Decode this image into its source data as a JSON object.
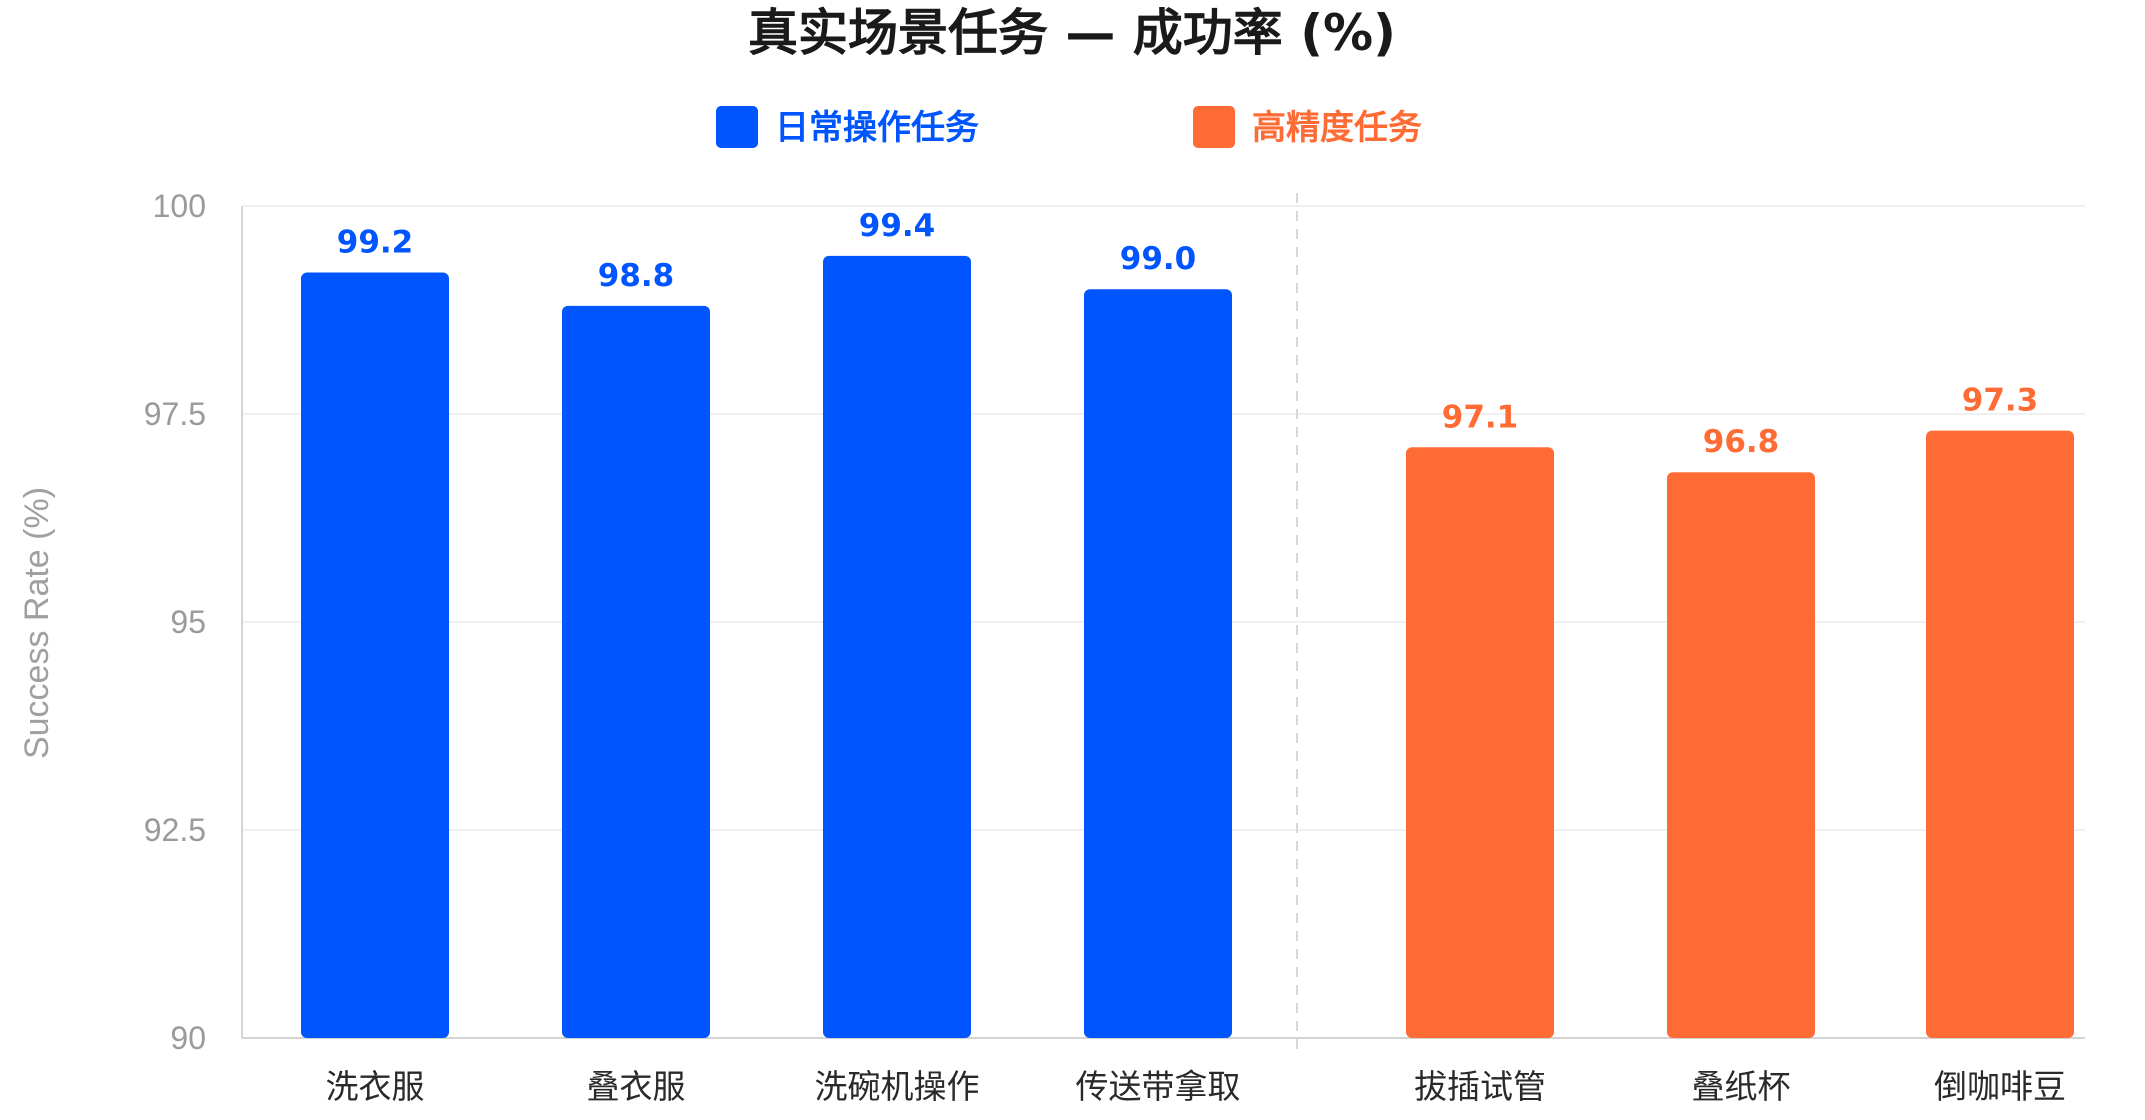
{
  "chart_data": {
    "type": "bar",
    "title": "真实场景任务 — 成功率 (%)",
    "ylabel": "Success Rate (%)",
    "xlabel": "",
    "ylim": [
      90,
      100
    ],
    "yticks": [
      "100",
      "97.5",
      "95",
      "92.5",
      "90"
    ],
    "ytick_values": [
      100,
      97.5,
      95,
      92.5,
      90
    ],
    "legend_position": "top-center",
    "grid": true,
    "groups": [
      {
        "name": "日常操作任务",
        "color": "#0055FF",
        "categories": [
          "洗衣服",
          "叠衣服",
          "洗碗机操作",
          "传送带拿取"
        ],
        "values": [
          99.2,
          98.8,
          99.4,
          99.0
        ],
        "labels": [
          "99.2",
          "98.8",
          "99.4",
          "99.0"
        ]
      },
      {
        "name": "高精度任务",
        "color": "#FF6B35",
        "categories": [
          "拔插试管",
          "叠纸杯",
          "倒咖啡豆"
        ],
        "values": [
          97.1,
          96.8,
          97.3
        ],
        "labels": [
          "97.1",
          "96.8",
          "97.3"
        ]
      }
    ]
  }
}
